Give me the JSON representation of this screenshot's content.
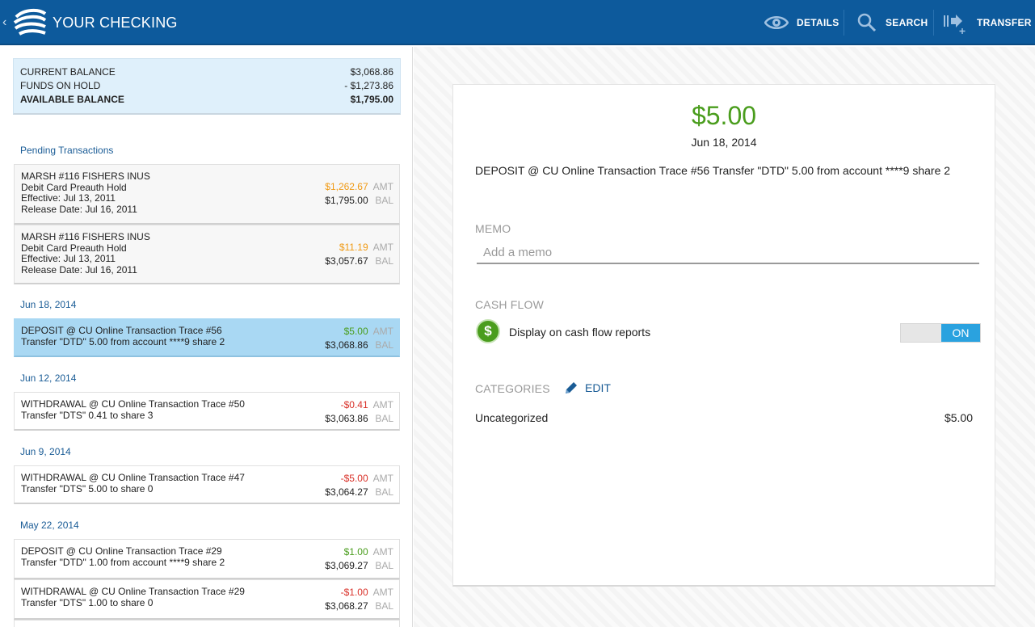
{
  "header": {
    "title": "YOUR CHECKING",
    "details_label": "DETAILS",
    "search_label": "SEARCH",
    "transfer_label": "TRANSFER"
  },
  "balance": {
    "current_label": "CURRENT BALANCE",
    "current_value": "$3,068.86",
    "hold_label": "FUNDS ON HOLD",
    "hold_value": "- $1,273.86",
    "available_label": "AVAILABLE BALANCE",
    "available_value": "$1,795.00"
  },
  "amt_tag": "AMT",
  "bal_tag": "BAL",
  "sections": {
    "pending": "Pending Transactions",
    "jun18": "Jun 18, 2014",
    "jun12": "Jun 12, 2014",
    "jun9": "Jun 9, 2014",
    "may22": "May 22, 2014"
  },
  "transactions": [
    {
      "lines": [
        "MARSH #116 FISHERS INUS",
        "Debit Card Preauth Hold",
        "Effective: Jul 13, 2011",
        "Release Date: Jul 16, 2011"
      ],
      "amount": "$1,262.67",
      "balance": "$1,795.00",
      "color": "#f09a14"
    },
    {
      "lines": [
        "MARSH #116 FISHERS INUS",
        "Debit Card Preauth Hold",
        "Effective: Jul 13, 2011",
        "Release Date: Jul 16, 2011"
      ],
      "amount": "$11.19",
      "balance": "$3,057.67",
      "color": "#f09a14"
    },
    {
      "lines": [
        "DEPOSIT  @ CU Online Transaction  Trace #56",
        "Transfer \"DTD\" 5.00 from account ****9  share 2"
      ],
      "amount": "$5.00",
      "balance": "$3,068.86",
      "color": "#4a9d1d"
    },
    {
      "lines": [
        "WITHDRAWAL  @ CU Online Transaction  Trace #50",
        "Transfer \"DTS\" 0.41 to share 3"
      ],
      "amount": "-$0.41",
      "balance": "$3,063.86",
      "color": "#d9322a"
    },
    {
      "lines": [
        "WITHDRAWAL  @ CU Online Transaction  Trace #47",
        "Transfer \"DTS\" 5.00 to share 0"
      ],
      "amount": "-$5.00",
      "balance": "$3,064.27",
      "color": "#d9322a"
    },
    {
      "lines": [
        "DEPOSIT  @ CU Online Transaction  Trace #29",
        "Transfer \"DTD\" 1.00 from account ****9  share 2"
      ],
      "amount": "$1.00",
      "balance": "$3,069.27",
      "color": "#4a9d1d"
    },
    {
      "lines": [
        "WITHDRAWAL  @ CU Online Transaction  Trace #29",
        "Transfer \"DTS\" 1.00 to share 0"
      ],
      "amount": "-$1.00",
      "balance": "$3,068.27",
      "color": "#d9322a"
    }
  ],
  "detail": {
    "amount": "$5.00",
    "date": "Jun 18, 2014",
    "description": "DEPOSIT  @ CU Online Transaction  Trace #56    Transfer \"DTD\" 5.00 from account ****9  share 2",
    "memo_label": "MEMO",
    "memo_placeholder": "Add a memo",
    "cashflow_label": "CASH FLOW",
    "cashflow_text": "Display on cash flow reports",
    "toggle_state": "ON",
    "categories_label": "CATEGORIES",
    "edit_label": "EDIT",
    "category_name": "Uncategorized",
    "category_amount": "$5.00"
  }
}
